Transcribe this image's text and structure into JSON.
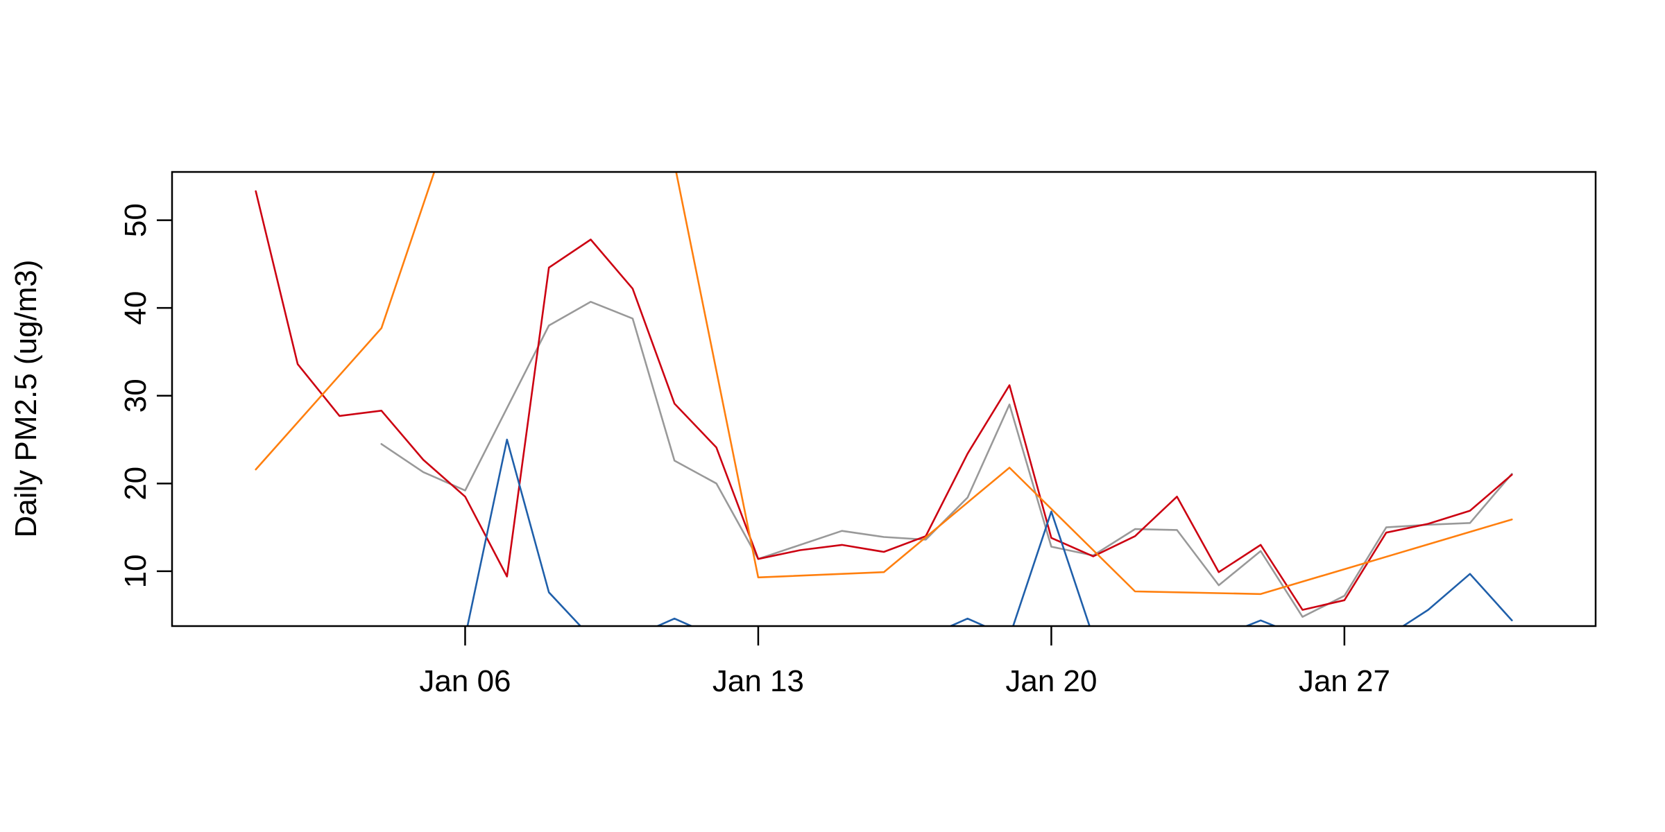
{
  "chart_data": {
    "type": "line",
    "title": "",
    "xlabel": "",
    "ylabel": "Daily PM2.5 (ug/m3)",
    "x_is_date": true,
    "x_ticks": [
      {
        "date": "2019-01-06",
        "label": "Jan 06"
      },
      {
        "date": "2019-01-13",
        "label": "Jan 13"
      },
      {
        "date": "2019-01-20",
        "label": "Jan 20"
      },
      {
        "date": "2019-01-27",
        "label": "Jan 27"
      }
    ],
    "y_ticks": [
      10,
      20,
      30,
      40,
      50
    ],
    "xlim": [
      "2018-12-30",
      "2019-02-02"
    ],
    "ylim": [
      3.75,
      55.5
    ],
    "grid": false,
    "legend": "none",
    "series": [
      {
        "color": "#999999",
        "points": [
          [
            "2019-01-04",
            24.5
          ],
          [
            "2019-01-05",
            21.3
          ],
          [
            "2019-01-06",
            19.2
          ],
          [
            "2019-01-08",
            38.0
          ],
          [
            "2019-01-09",
            40.7
          ],
          [
            "2019-01-10",
            38.8
          ],
          [
            "2019-01-11",
            22.6
          ],
          [
            "2019-01-12",
            20.0
          ],
          [
            "2019-01-13",
            11.4
          ],
          [
            "2019-01-15",
            14.6
          ],
          [
            "2019-01-16",
            13.9
          ],
          [
            "2019-01-17",
            13.6
          ],
          [
            "2019-01-18",
            18.4
          ],
          [
            "2019-01-19",
            29.0
          ],
          [
            "2019-01-20",
            12.8
          ],
          [
            "2019-01-21",
            11.8
          ],
          [
            "2019-01-22",
            14.8
          ],
          [
            "2019-01-23",
            14.7
          ],
          [
            "2019-01-24",
            8.4
          ],
          [
            "2019-01-25",
            12.3
          ],
          [
            "2019-01-26",
            4.8
          ],
          [
            "2019-01-27",
            7.2
          ],
          [
            "2019-01-28",
            15.0
          ],
          [
            "2019-01-29",
            15.3
          ],
          [
            "2019-01-30",
            15.5
          ],
          [
            "2019-01-31",
            21.1
          ]
        ]
      },
      {
        "color": "#CC0011",
        "points": [
          [
            "2019-01-01",
            53.3
          ],
          [
            "2019-01-02",
            33.6
          ],
          [
            "2019-01-03",
            27.7
          ],
          [
            "2019-01-04",
            28.3
          ],
          [
            "2019-01-05",
            22.7
          ],
          [
            "2019-01-06",
            18.5
          ],
          [
            "2019-01-07",
            9.4
          ],
          [
            "2019-01-08",
            44.6
          ],
          [
            "2019-01-09",
            47.8
          ],
          [
            "2019-01-10",
            42.2
          ],
          [
            "2019-01-11",
            29.1
          ],
          [
            "2019-01-12",
            24.1
          ],
          [
            "2019-01-13",
            11.4
          ],
          [
            "2019-01-14",
            12.4
          ],
          [
            "2019-01-15",
            13.0
          ],
          [
            "2019-01-16",
            12.2
          ],
          [
            "2019-01-17",
            14.0
          ],
          [
            "2019-01-18",
            23.4
          ],
          [
            "2019-01-19",
            31.2
          ],
          [
            "2019-01-20",
            13.8
          ],
          [
            "2019-01-21",
            11.7
          ],
          [
            "2019-01-22",
            14.0
          ],
          [
            "2019-01-23",
            18.5
          ],
          [
            "2019-01-24",
            9.9
          ],
          [
            "2019-01-25",
            13.0
          ],
          [
            "2019-01-26",
            5.6
          ],
          [
            "2019-01-27",
            6.7
          ],
          [
            "2019-01-28",
            14.4
          ],
          [
            "2019-01-29",
            15.4
          ],
          [
            "2019-01-30",
            16.9
          ],
          [
            "2019-01-31",
            21.0
          ]
        ]
      },
      {
        "color": "#FF7F0E",
        "points": [
          [
            "2019-01-01",
            21.6
          ],
          [
            "2019-01-04",
            37.7
          ],
          [
            "2019-01-07",
            80.0
          ],
          [
            "2019-01-10",
            80.0
          ],
          [
            "2019-01-13",
            9.3
          ],
          [
            "2019-01-16",
            9.9
          ],
          [
            "2019-01-19",
            21.8
          ],
          [
            "2019-01-22",
            7.7
          ],
          [
            "2019-01-25",
            7.4
          ],
          [
            "2019-01-31",
            15.9
          ]
        ]
      },
      {
        "color": "#1F5FAA",
        "points": [
          [
            "2019-01-06",
            2.5
          ],
          [
            "2019-01-07",
            25.0
          ],
          [
            "2019-01-08",
            7.6
          ],
          [
            "2019-01-09",
            2.5
          ],
          [
            "2019-01-10",
            2.5
          ],
          [
            "2019-01-11",
            4.6
          ],
          [
            "2019-01-12",
            2.5
          ],
          [
            "2019-01-13",
            2.5
          ],
          [
            "2019-01-14",
            2.5
          ],
          [
            "2019-01-15",
            2.5
          ],
          [
            "2019-01-16",
            2.5
          ],
          [
            "2019-01-17",
            2.5
          ],
          [
            "2019-01-18",
            4.6
          ],
          [
            "2019-01-19",
            2.5
          ],
          [
            "2019-01-20",
            16.8
          ],
          [
            "2019-01-21",
            2.5
          ],
          [
            "2019-01-22",
            2.5
          ],
          [
            "2019-01-23",
            2.5
          ],
          [
            "2019-01-24",
            2.5
          ],
          [
            "2019-01-25",
            4.4
          ],
          [
            "2019-01-26",
            2.5
          ],
          [
            "2019-01-27",
            2.5
          ],
          [
            "2019-01-28",
            2.5
          ],
          [
            "2019-01-29",
            5.6
          ],
          [
            "2019-01-30",
            9.7
          ],
          [
            "2019-01-31",
            4.4
          ]
        ]
      }
    ]
  }
}
